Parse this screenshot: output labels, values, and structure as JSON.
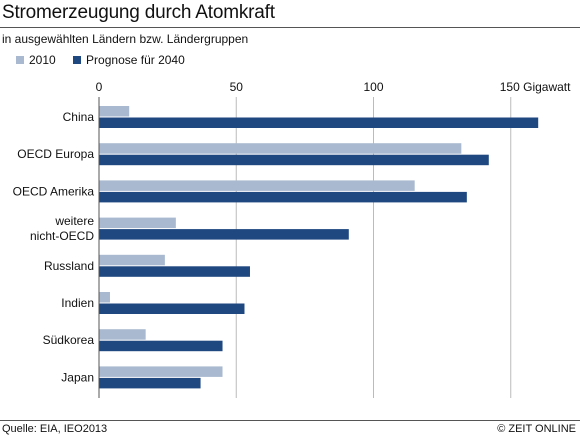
{
  "header": {
    "title": "Stromerzeugung durch Atomkraft",
    "subtitle": "in ausgewählten Ländern bzw. Ländergruppen"
  },
  "footer": {
    "source": "Quelle: EIA, IEO2013",
    "credit": "© ZEIT ONLINE"
  },
  "colors": {
    "series_2010": "#a9bad0",
    "series_2040": "#1f4780",
    "grid": "#bbbbbb",
    "axis": "#555555"
  },
  "chart_data": {
    "type": "bar",
    "orientation": "horizontal",
    "unit": "Gigawatt",
    "xlim": [
      0,
      160
    ],
    "xticks": [
      {
        "value": 0,
        "label": "0"
      },
      {
        "value": 50,
        "label": "50"
      },
      {
        "value": 100,
        "label": "100"
      },
      {
        "value": 150,
        "label": "150 Gigawatt"
      }
    ],
    "grid": true,
    "legend_position": "top-left",
    "categories": [
      [
        "China"
      ],
      [
        "OECD Europa"
      ],
      [
        "OECD Amerika"
      ],
      [
        "weitere",
        "nicht-OECD"
      ],
      [
        "Russland"
      ],
      [
        "Indien"
      ],
      [
        "Südkorea"
      ],
      [
        "Japan"
      ]
    ],
    "series": [
      {
        "name": "2010",
        "values": [
          11,
          132,
          115,
          28,
          24,
          4,
          17,
          45
        ]
      },
      {
        "name": "Prognose für 2040",
        "values": [
          160,
          142,
          134,
          91,
          55,
          53,
          45,
          37
        ]
      }
    ]
  }
}
